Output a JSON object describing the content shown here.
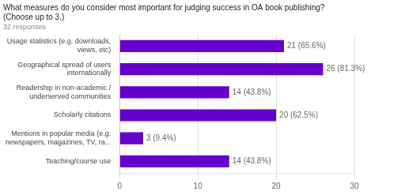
{
  "chart_data": {
    "type": "bar",
    "orientation": "horizontal",
    "title": "What measures do you consider most important for judging success in OA book publishing?\n(Choose up to 3.)",
    "subtitle": "32 responses",
    "categories": [
      "Usage statistics (e.g. downloads,\nviews, etc)",
      "Geographical spread of users\ninternationally",
      "Readership in non-academic /\nunderserved communities",
      "Scholarly citations",
      "Mentions in popular media (e.g.\nnewspapers, magazines, TV, ra...",
      "Teaching/course use"
    ],
    "values": [
      21,
      26,
      14,
      20,
      3,
      14
    ],
    "value_labels": [
      "21 (65.6%)",
      "26 (81.3%)",
      "14 (43.8%)",
      "20 (62.5%)",
      "3 (9.4%)",
      "14 (43.8%)"
    ],
    "data_labels": true,
    "color": "#6600cc",
    "xlim": [
      0,
      30
    ],
    "xticks": [
      0,
      10,
      20,
      30
    ],
    "grid": true
  }
}
